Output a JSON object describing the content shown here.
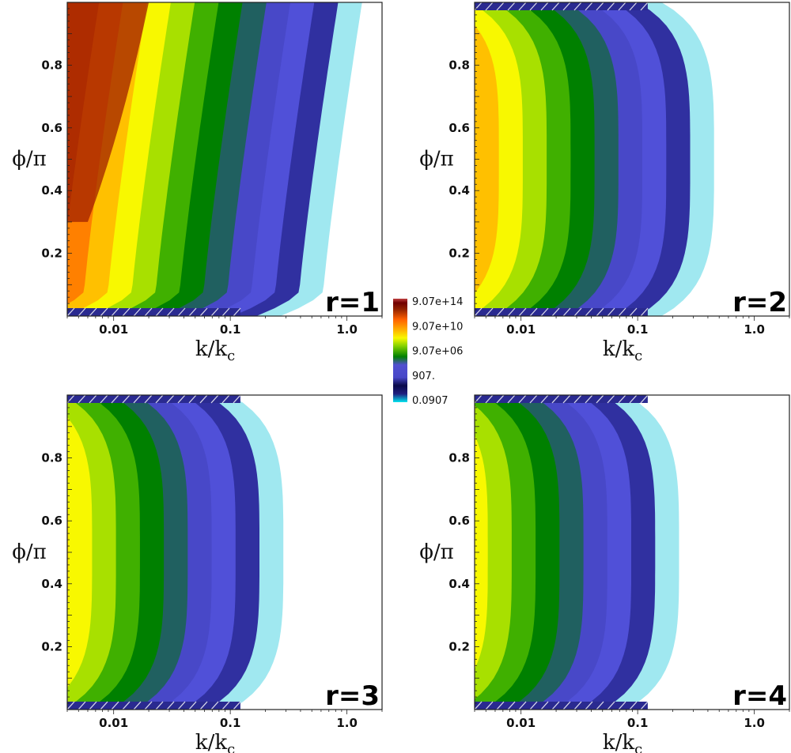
{
  "chart_data": [
    {
      "type": "heatmap",
      "panel_label": "r=1",
      "xlabel": "k/k",
      "xlabel_sub": "c",
      "ylabel": "ϕ/π",
      "x_scale": "log",
      "xlim": [
        0.004,
        2.0
      ],
      "ylim": [
        0.0,
        1.0
      ],
      "x_ticks": [
        0.01,
        0.1,
        1.0
      ],
      "x_tick_labels": [
        "0.01",
        "0.1",
        "1.0"
      ],
      "y_ticks": [
        0.2,
        0.4,
        0.6,
        0.8
      ],
      "y_tick_labels": [
        "0.2",
        "0.4",
        "0.6",
        "0.8"
      ],
      "contour_edges_log10": {
        "phi": [
          0.0,
          0.1,
          0.3,
          0.5,
          0.7,
          0.9,
          1.0
        ],
        "v8": [
          -1.28,
          -1.1,
          -1.07,
          -1.05,
          -1.02,
          -1.0,
          -1.0
        ],
        "v6": [
          -1.45,
          -1.22,
          -1.2,
          -1.2,
          -1.18,
          -1.15,
          -1.1
        ],
        "v4": [
          -1.8,
          -1.5,
          -1.45,
          -1.42,
          -1.38,
          -1.35,
          -1.3
        ],
        "v2": [
          -2.1,
          -1.85,
          -1.8,
          -1.75,
          -1.72,
          -1.68,
          -1.62
        ],
        "v0": [
          -2.6,
          -2.4,
          -2.3,
          -2.25,
          -2.2,
          -2.12,
          -2.05
        ]
      }
    },
    {
      "type": "heatmap",
      "panel_label": "r=2",
      "xlabel": "k/k",
      "xlabel_sub": "c",
      "ylabel": "ϕ/π",
      "x_scale": "log",
      "xlim": [
        0.004,
        2.0
      ],
      "ylim": [
        0.0,
        1.0
      ],
      "x_ticks": [
        0.01,
        0.1,
        1.0
      ],
      "x_tick_labels": [
        "0.01",
        "0.1",
        "1.0"
      ],
      "y_ticks": [
        0.2,
        0.4,
        0.6,
        0.8
      ],
      "y_tick_labels": [
        "0.2",
        "0.4",
        "0.6",
        "0.8"
      ]
    },
    {
      "type": "heatmap",
      "panel_label": "r=3",
      "xlabel": "k/k",
      "xlabel_sub": "c",
      "ylabel": "ϕ/π",
      "x_scale": "log",
      "xlim": [
        0.004,
        2.0
      ],
      "ylim": [
        0.0,
        1.0
      ],
      "x_ticks": [
        0.01,
        0.1,
        1.0
      ],
      "x_tick_labels": [
        "0.01",
        "0.1",
        "1.0"
      ],
      "y_ticks": [
        0.2,
        0.4,
        0.6,
        0.8
      ],
      "y_tick_labels": [
        "0.2",
        "0.4",
        "0.6",
        "0.8"
      ]
    },
    {
      "type": "heatmap",
      "panel_label": "r=4",
      "xlabel": "k/k",
      "xlabel_sub": "c",
      "ylabel": "ϕ/π",
      "x_scale": "log",
      "xlim": [
        0.004,
        2.0
      ],
      "ylim": [
        0.0,
        1.0
      ],
      "x_ticks": [
        0.01,
        0.1,
        1.0
      ],
      "x_tick_labels": [
        "0.01",
        "0.1",
        "1.0"
      ],
      "y_ticks": [
        0.2,
        0.4,
        0.6,
        0.8
      ],
      "y_tick_labels": [
        "0.2",
        "0.4",
        "0.6",
        "0.8"
      ]
    }
  ],
  "colorbar": {
    "scale": "log",
    "tick_labels": [
      "9.07e+14",
      "9.07e+10",
      "9.07e+06",
      "907.",
      "0.0907"
    ],
    "tick_values": [
      907000000000000.0,
      90700000000.0,
      9070000.0,
      907,
      0.0907
    ],
    "colors": [
      "#00e5ee",
      "#0a0a3a",
      "#4040c0",
      "#5050d8",
      "#008000",
      "#60c000",
      "#f0f000",
      "#ffd000",
      "#ff8000",
      "#e03000",
      "#700000",
      "#a02020",
      "#c04040"
    ]
  }
}
